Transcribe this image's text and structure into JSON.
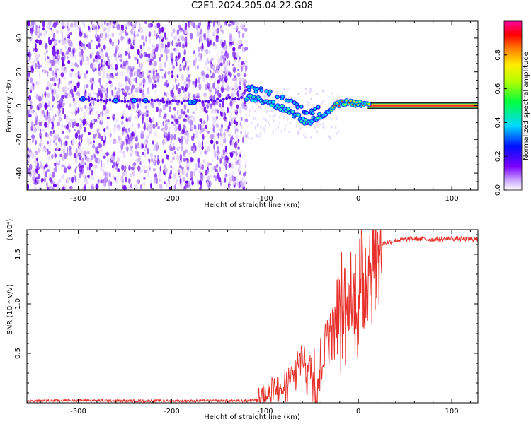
{
  "title": "C2E1.2024.205.04.22.G08",
  "colors": {
    "signal_line": "#e8302a",
    "spectrum_low": "#7a00ff",
    "spectrum_band": "#ff2a2a",
    "frame": "#000000"
  },
  "chart_data": [
    {
      "type": "heatmap",
      "xlabel": "Height of straight line (km)",
      "ylabel": "Frequency (Hz)",
      "xlim": [
        -355,
        128
      ],
      "ylim": [
        -50,
        50
      ],
      "xticks": [
        -300,
        -200,
        -100,
        0,
        100
      ],
      "xtick_labels": [
        "-300",
        "-200",
        "-100",
        "0",
        "100"
      ],
      "yticks": [
        -40,
        -20,
        0,
        20,
        40
      ],
      "ytick_labels": [
        "-40",
        "-20",
        "0",
        "20",
        "40"
      ],
      "noise_region_x": [
        -355,
        -120
      ],
      "signal_track": {
        "x": [
          -295,
          -260,
          -240,
          -230,
          -180,
          -120,
          -110,
          -100,
          -90,
          -80,
          -70,
          -60,
          -55,
          -50,
          -40,
          -30,
          -20,
          -10,
          0,
          10
        ],
        "y": [
          4,
          3,
          3,
          3,
          2,
          5,
          4,
          3,
          1,
          -2,
          -5,
          -8,
          -10,
          -9,
          -6,
          -2,
          1,
          2,
          1,
          0
        ]
      },
      "tone_band": {
        "x_start": 10,
        "x_end": 128,
        "y": 0
      },
      "colorbar": {
        "label": "Normalized spectral amplitude",
        "ticks": [
          0.0,
          0.2,
          0.4,
          0.6,
          0.8
        ],
        "tick_labels": [
          "0.0",
          "0.2",
          "0.4",
          "0.6",
          "0.8"
        ],
        "range": [
          0,
          1
        ]
      },
      "grid": false
    },
    {
      "type": "line",
      "xlabel": "Height of straight line (km)",
      "ylabel": "SNR (10 * v/v)",
      "y_multiplier": "(x10⁴)",
      "xlim": [
        -355,
        128
      ],
      "ylim": [
        0,
        1.75
      ],
      "xticks": [
        -300,
        -200,
        -100,
        0,
        100
      ],
      "xtick_labels": [
        "-300",
        "-200",
        "-100",
        "0",
        "100"
      ],
      "yticks": [
        0.5,
        1.0,
        1.5
      ],
      "ytick_labels": [
        "0.5",
        "1.0",
        "1.5"
      ],
      "series": [
        {
          "x": [
            -355,
            -300,
            -250,
            -200,
            -150,
            -120,
            -110,
            -100,
            -90,
            -80,
            -70,
            -65,
            -60,
            -55,
            -50,
            -45,
            -40,
            -35,
            -30,
            -25,
            -20,
            -15,
            -10,
            -5,
            0,
            5,
            10,
            15,
            20,
            25,
            30,
            40,
            50,
            60,
            80,
            100,
            128
          ],
          "y": [
            0.02,
            0.025,
            0.02,
            0.02,
            0.02,
            0.02,
            0.03,
            0.05,
            0.1,
            0.15,
            0.25,
            0.4,
            0.5,
            0.35,
            0.3,
            0.2,
            0.35,
            0.7,
            0.8,
            0.85,
            0.95,
            0.9,
            0.95,
            1.05,
            1.05,
            1.2,
            1.35,
            1.45,
            1.55,
            1.6,
            1.62,
            1.64,
            1.65,
            1.66,
            1.65,
            1.66,
            1.65
          ]
        }
      ],
      "grid": false
    }
  ]
}
